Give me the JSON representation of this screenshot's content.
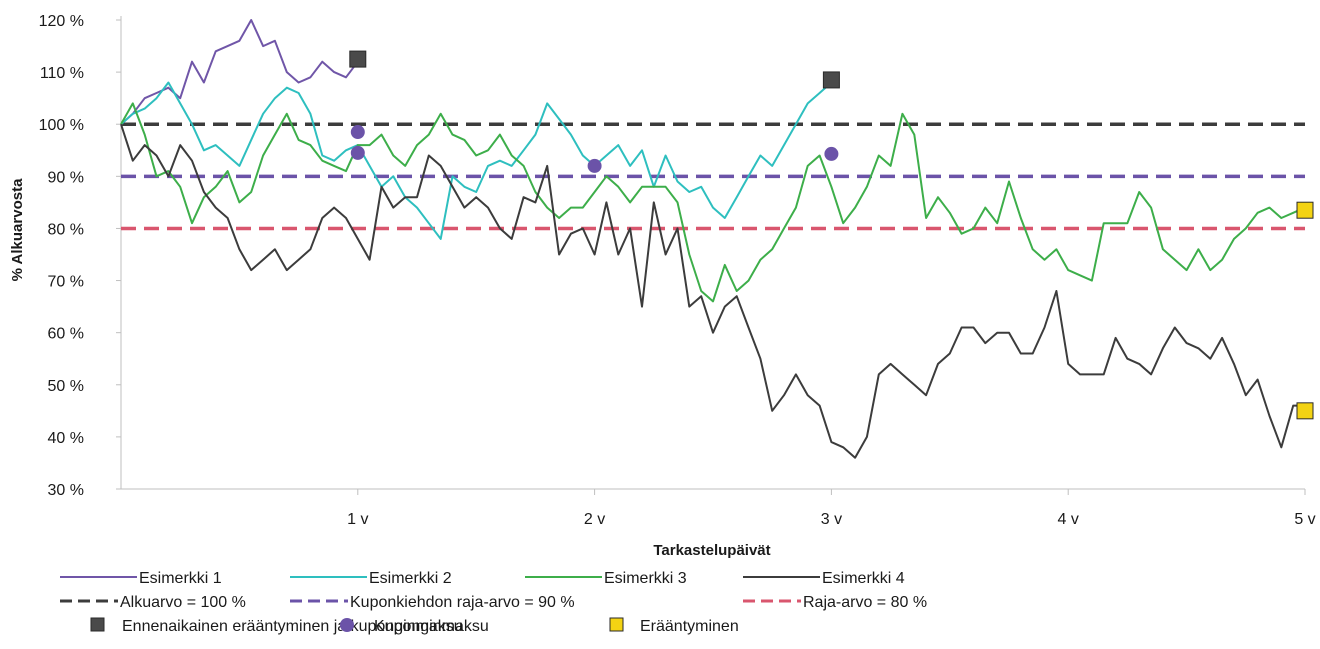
{
  "chart_data": {
    "type": "line",
    "xlabel": "Tarkastelupäivät",
    "ylabel": "% Alkuarvosta",
    "xlim": [
      0,
      5
    ],
    "ylim": [
      30,
      120
    ],
    "y_ticks": [
      {
        "value": 30,
        "label": "30 %"
      },
      {
        "value": 40,
        "label": "40 %"
      },
      {
        "value": 50,
        "label": "50 %"
      },
      {
        "value": 60,
        "label": "60 %"
      },
      {
        "value": 70,
        "label": "70 %"
      },
      {
        "value": 80,
        "label": "80 %"
      },
      {
        "value": 90,
        "label": "90 %"
      },
      {
        "value": 100,
        "label": "100 %"
      },
      {
        "value": 110,
        "label": "110 %"
      },
      {
        "value": 120,
        "label": "120 %"
      }
    ],
    "x_ticks": [
      {
        "value": 1,
        "label": "1 v"
      },
      {
        "value": 2,
        "label": "2 v"
      },
      {
        "value": 3,
        "label": "3 v"
      },
      {
        "value": 4,
        "label": "4 v"
      },
      {
        "value": 5,
        "label": "5 v"
      }
    ],
    "grid": false,
    "legend_position": "bottom",
    "series": [
      {
        "name": "Esimerkki 1",
        "color": "#7056a8",
        "x": [
          0,
          0.05,
          0.1,
          0.15,
          0.2,
          0.25,
          0.3,
          0.35,
          0.4,
          0.45,
          0.5,
          0.55,
          0.6,
          0.65,
          0.7,
          0.75,
          0.8,
          0.85,
          0.9,
          0.95,
          1.0
        ],
        "y": [
          100,
          102,
          105,
          106,
          107,
          105,
          112,
          108,
          114,
          115,
          116,
          120,
          115,
          116,
          110,
          108,
          109,
          112,
          110,
          109,
          112
        ]
      },
      {
        "name": "Esimerkki 2",
        "color": "#2ebfbf",
        "x": [
          0,
          0.05,
          0.1,
          0.15,
          0.2,
          0.25,
          0.3,
          0.35,
          0.4,
          0.45,
          0.5,
          0.55,
          0.6,
          0.65,
          0.7,
          0.75,
          0.8,
          0.85,
          0.9,
          0.95,
          1.0,
          1.05,
          1.1,
          1.15,
          1.2,
          1.25,
          1.3,
          1.35,
          1.4,
          1.45,
          1.5,
          1.55,
          1.6,
          1.65,
          1.7,
          1.75,
          1.8,
          1.85,
          1.9,
          1.95,
          2.0,
          2.05,
          2.1,
          2.15,
          2.2,
          2.25,
          2.3,
          2.35,
          2.4,
          2.45,
          2.5,
          2.55,
          2.6,
          2.65,
          2.7,
          2.75,
          2.8,
          2.85,
          2.9,
          2.95,
          3.0
        ],
        "y": [
          100,
          102,
          103,
          105,
          108,
          104,
          100,
          95,
          96,
          94,
          92,
          97,
          102,
          105,
          107,
          106,
          102,
          94,
          93,
          95,
          96,
          92,
          88,
          90,
          86,
          84,
          81,
          78,
          90,
          88,
          87,
          92,
          93,
          92,
          95,
          98,
          104,
          101,
          98,
          94,
          92,
          94,
          96,
          92,
          95,
          88,
          94,
          89,
          87,
          88,
          84,
          82,
          86,
          90,
          94,
          92,
          96,
          100,
          104,
          106,
          108
        ]
      },
      {
        "name": "Esimerkki 3",
        "color": "#3dae4a",
        "x": [
          0,
          0.05,
          0.1,
          0.15,
          0.2,
          0.25,
          0.3,
          0.35,
          0.4,
          0.45,
          0.5,
          0.55,
          0.6,
          0.65,
          0.7,
          0.75,
          0.8,
          0.85,
          0.9,
          0.95,
          1.0,
          1.05,
          1.1,
          1.15,
          1.2,
          1.25,
          1.3,
          1.35,
          1.4,
          1.45,
          1.5,
          1.55,
          1.6,
          1.65,
          1.7,
          1.75,
          1.8,
          1.85,
          1.9,
          1.95,
          2.0,
          2.05,
          2.1,
          2.15,
          2.2,
          2.25,
          2.3,
          2.35,
          2.4,
          2.45,
          2.5,
          2.55,
          2.6,
          2.65,
          2.7,
          2.75,
          2.8,
          2.85,
          2.9,
          2.95,
          3.0,
          3.05,
          3.1,
          3.15,
          3.2,
          3.25,
          3.3,
          3.35,
          3.4,
          3.45,
          3.5,
          3.55,
          3.6,
          3.65,
          3.7,
          3.75,
          3.8,
          3.85,
          3.9,
          3.95,
          4.0,
          4.05,
          4.1,
          4.15,
          4.2,
          4.25,
          4.3,
          4.35,
          4.4,
          4.45,
          4.5,
          4.55,
          4.6,
          4.65,
          4.7,
          4.75,
          4.8,
          4.85,
          4.9,
          4.95,
          5.0
        ],
        "y": [
          100,
          104,
          98,
          90,
          91,
          88,
          81,
          86,
          88,
          91,
          85,
          87,
          94,
          98,
          102,
          97,
          96,
          93,
          92,
          91,
          96,
          96,
          98,
          94,
          92,
          96,
          98,
          102,
          98,
          97,
          94,
          95,
          98,
          94,
          92,
          87,
          84,
          82,
          84,
          84,
          87,
          90,
          88,
          85,
          88,
          88,
          88,
          85,
          75,
          68,
          66,
          73,
          68,
          70,
          74,
          76,
          80,
          84,
          92,
          94,
          88,
          81,
          84,
          88,
          94,
          92,
          102,
          98,
          82,
          86,
          83,
          79,
          80,
          84,
          81,
          89,
          82,
          76,
          74,
          76,
          72,
          71,
          70,
          81,
          81,
          81,
          87,
          84,
          76,
          74,
          72,
          76,
          72,
          74,
          78,
          80,
          83,
          84,
          82,
          83,
          84
        ]
      },
      {
        "name": "Esimerkki 4",
        "color": "#3c3c3c",
        "x": [
          0,
          0.05,
          0.1,
          0.15,
          0.2,
          0.25,
          0.3,
          0.35,
          0.4,
          0.45,
          0.5,
          0.55,
          0.6,
          0.65,
          0.7,
          0.75,
          0.8,
          0.85,
          0.9,
          0.95,
          1.0,
          1.05,
          1.1,
          1.15,
          1.2,
          1.25,
          1.3,
          1.35,
          1.4,
          1.45,
          1.5,
          1.55,
          1.6,
          1.65,
          1.7,
          1.75,
          1.8,
          1.85,
          1.9,
          1.95,
          2.0,
          2.05,
          2.1,
          2.15,
          2.2,
          2.25,
          2.3,
          2.35,
          2.4,
          2.45,
          2.5,
          2.55,
          2.6,
          2.65,
          2.7,
          2.75,
          2.8,
          2.85,
          2.9,
          2.95,
          3.0,
          3.05,
          3.1,
          3.15,
          3.2,
          3.25,
          3.3,
          3.35,
          3.4,
          3.45,
          3.5,
          3.55,
          3.6,
          3.65,
          3.7,
          3.75,
          3.8,
          3.85,
          3.9,
          3.95,
          4.0,
          4.05,
          4.1,
          4.15,
          4.2,
          4.25,
          4.3,
          4.35,
          4.4,
          4.45,
          4.5,
          4.55,
          4.6,
          4.65,
          4.7,
          4.75,
          4.8,
          4.85,
          4.9,
          4.95,
          5.0
        ],
        "y": [
          100,
          93,
          96,
          94,
          90,
          96,
          93,
          87,
          84,
          82,
          76,
          72,
          74,
          76,
          72,
          74,
          76,
          82,
          84,
          82,
          78,
          74,
          88,
          84,
          86,
          86,
          94,
          92,
          88,
          84,
          86,
          84,
          80,
          78,
          86,
          85,
          92,
          75,
          79,
          80,
          75,
          85,
          75,
          80,
          65,
          85,
          75,
          80,
          65,
          67,
          60,
          65,
          67,
          61,
          55,
          45,
          48,
          52,
          48,
          46,
          39,
          38,
          36,
          40,
          52,
          54,
          52,
          50,
          48,
          54,
          56,
          61,
          61,
          58,
          60,
          60,
          56,
          56,
          61,
          68,
          54,
          52,
          52,
          52,
          59,
          55,
          54,
          52,
          57,
          61,
          58,
          57,
          55,
          59,
          54,
          48,
          51,
          44,
          38,
          46,
          46
        ]
      }
    ],
    "reference_lines": [
      {
        "name": "Alkuarvo = 100 %",
        "value": 100,
        "color": "#3c3c3c"
      },
      {
        "name": "Kuponkiehdon raja-arvo = 90 %",
        "value": 90,
        "color": "#6b53a8"
      },
      {
        "name": "Raja-arvo = 80 %",
        "value": 80,
        "color": "#d9566e"
      }
    ],
    "markers": [
      {
        "name": "Ennenaikainen erääntyminen ja kuponginmaksu",
        "shape": "square",
        "color": "#4a4a4a",
        "points": [
          {
            "x": 1,
            "y": 112.5
          },
          {
            "x": 3,
            "y": 108.5
          }
        ]
      },
      {
        "name": "Kuponginmaksu",
        "shape": "circle",
        "color": "#6b53a8",
        "points": [
          {
            "x": 1,
            "y": 98.5
          },
          {
            "x": 1,
            "y": 94.5
          },
          {
            "x": 2,
            "y": 92
          },
          {
            "x": 3,
            "y": 94.3
          }
        ]
      },
      {
        "name": "Erääntyminen",
        "shape": "square",
        "color": "#f3d313",
        "points": [
          {
            "x": 5,
            "y": 83.5
          },
          {
            "x": 5,
            "y": 45
          }
        ]
      }
    ]
  }
}
